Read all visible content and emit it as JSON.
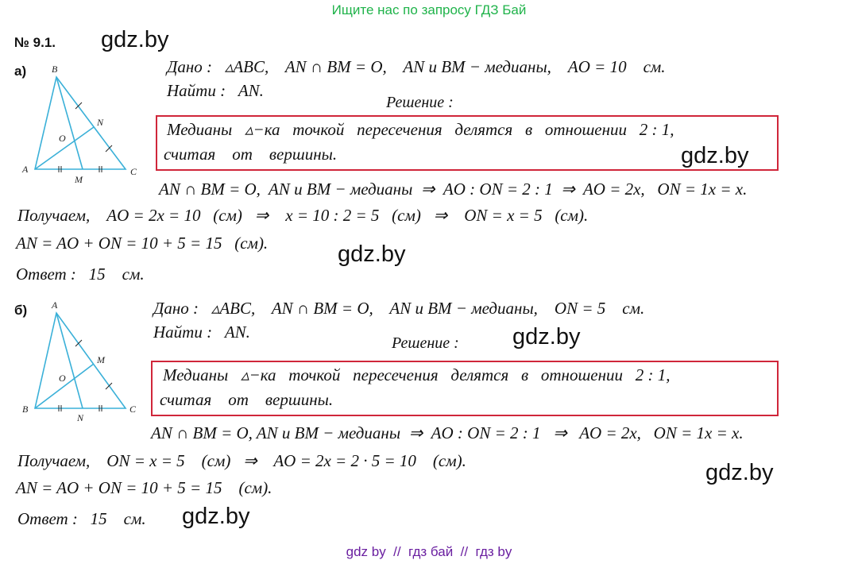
{
  "header": "Ищите нас по запросу ГДЗ Бай",
  "problem_number": "№ 9.1.",
  "watermark": "gdz.by",
  "footer": "gdz by  //  гдз бай  //  гдз by",
  "part_a": {
    "label": "а)",
    "figure_labels": {
      "top": "B",
      "left": "A",
      "right": "C",
      "base_mid": "M",
      "side_mid": "N",
      "center": "O"
    },
    "given": "Дано :   ▵ABC,    AN ∩ BM = O,    AN и BM − медианы,    AO = 10    см.",
    "find": "Найти :   AN.",
    "solution_title": "Решение :",
    "box_line1": "Медианы   ▵−ка   точкой   пересечения   делятся   в   отношении   2 : 1,",
    "box_line2": "считая    от    вершины.",
    "line1": "AN ∩ BM = O,  AN и BM − медианы  ⇒  AO : ON = 2 : 1  ⇒  AO = 2x,   ON = 1x = x.",
    "line2": "Получаем,    AO = 2x = 10   (см)   ⇒    x = 10 : 2 = 5   (см)   ⇒    ON = x = 5   (см).",
    "line3": "AN = AO + ON = 10 + 5 = 15   (см).",
    "answer": "Ответ :   15    см."
  },
  "part_b": {
    "label": "б)",
    "figure_labels": {
      "top": "A",
      "left": "B",
      "right": "C",
      "base_mid": "N",
      "side_mid": "M",
      "center": "O"
    },
    "given": "Дано :   ▵ABC,    AN ∩ BM = O,    AN и BM − медианы,    ON = 5    см.",
    "find": "Найти :   AN.",
    "solution_title": "Решение :",
    "box_line1": "Медианы   ▵−ка   точкой   пересечения   делятся   в   отношении   2 : 1,",
    "box_line2": "считая    от    вершины.",
    "line1": "AN ∩ BM = O, AN и BM − медианы  ⇒  AO : ON = 2 : 1   ⇒   AO = 2x,   ON = 1x = x.",
    "line2": "Получаем,    ON = x = 5    (см)   ⇒    AO = 2x = 2 · 5 = 10    (см).",
    "line3": "AN = AO + ON = 10 + 5 = 15    (см).",
    "answer": "Ответ :   15    см."
  }
}
